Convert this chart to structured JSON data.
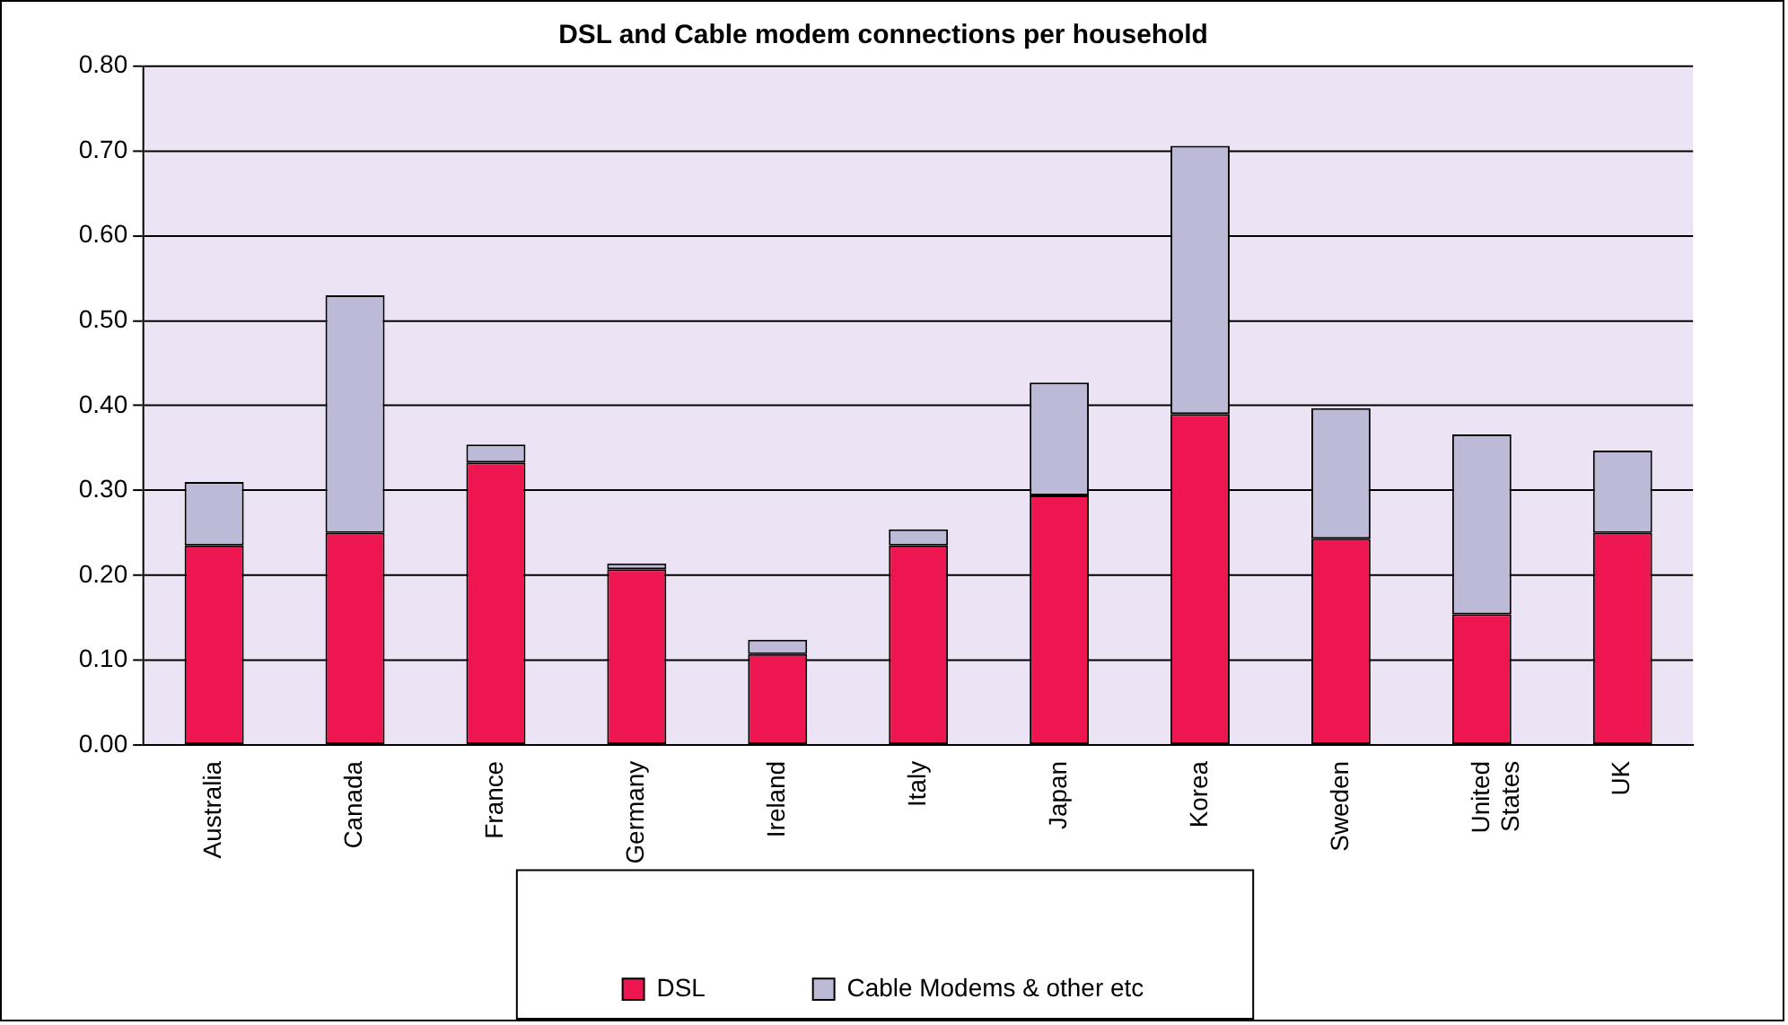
{
  "chart_data": {
    "type": "bar",
    "title": "DSL and Cable modem connections per household",
    "categories": [
      "Australia",
      "Canada",
      "France",
      "Germany",
      "Ireland",
      "Italy",
      "Japan",
      "Korea",
      "Sweden",
      "United States",
      "UK"
    ],
    "stacked": true,
    "series": [
      {
        "name": "DSL",
        "color": "#ee1651",
        "values": [
          0.235,
          0.25,
          0.333,
          0.207,
          0.107,
          0.235,
          0.294,
          0.39,
          0.243,
          0.154,
          0.25
        ]
      },
      {
        "name": "Cable Modems & other etc",
        "color": "#bcbad6",
        "values": [
          0.075,
          0.28,
          0.021,
          0.007,
          0.017,
          0.019,
          0.133,
          0.316,
          0.154,
          0.212,
          0.097
        ]
      }
    ],
    "ylim": [
      0,
      0.8
    ],
    "yticks": [
      {
        "value": 0,
        "label": "0.00"
      },
      {
        "value": 0.1,
        "label": "0.10"
      },
      {
        "value": 0.2,
        "label": "0.20"
      },
      {
        "value": 0.3,
        "label": "0.30"
      },
      {
        "value": 0.4,
        "label": "0.40"
      },
      {
        "value": 0.5,
        "label": "0.50"
      },
      {
        "value": 0.6,
        "label": "0.60"
      },
      {
        "value": 0.7,
        "label": "0.70"
      },
      {
        "value": 0.8,
        "label": "0.80"
      }
    ],
    "grid": "y",
    "legend": "bottom"
  }
}
